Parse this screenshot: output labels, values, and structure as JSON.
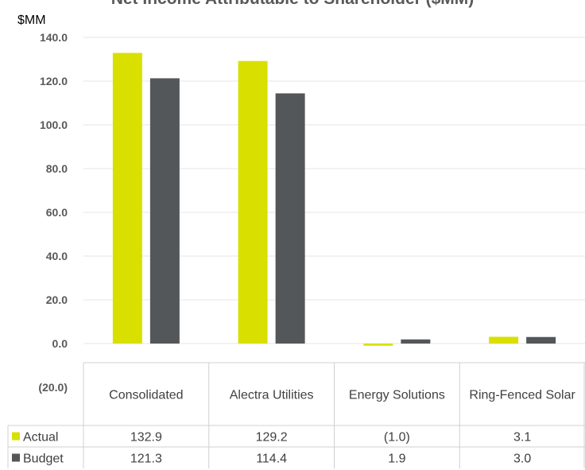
{
  "chart_data": {
    "type": "bar",
    "title": "Net Income Attributable to Shareholder ($MM)",
    "ylabel": "$MM",
    "ylim": [
      -20,
      140
    ],
    "yticks": [
      "(20.0)",
      "0.0",
      "20.0",
      "40.0",
      "60.0",
      "80.0",
      "100.0",
      "120.0",
      "140.0"
    ],
    "grid": true,
    "categories": [
      "Consolidated",
      "Alectra Utilities",
      "Energy Solutions",
      "Ring-Fenced Solar"
    ],
    "series": [
      {
        "name": "Actual",
        "values": [
          132.9,
          129.2,
          -1.0,
          3.1
        ],
        "labels": [
          "132.9",
          "129.2",
          "(1.0)",
          "3.1"
        ],
        "color": "#d9e000"
      },
      {
        "name": "Budget",
        "values": [
          121.3,
          114.4,
          1.9,
          3.0
        ],
        "labels": [
          "121.3",
          "114.4",
          "1.9",
          "3.0"
        ],
        "color": "#54575a"
      }
    ],
    "legend": "data-table"
  }
}
